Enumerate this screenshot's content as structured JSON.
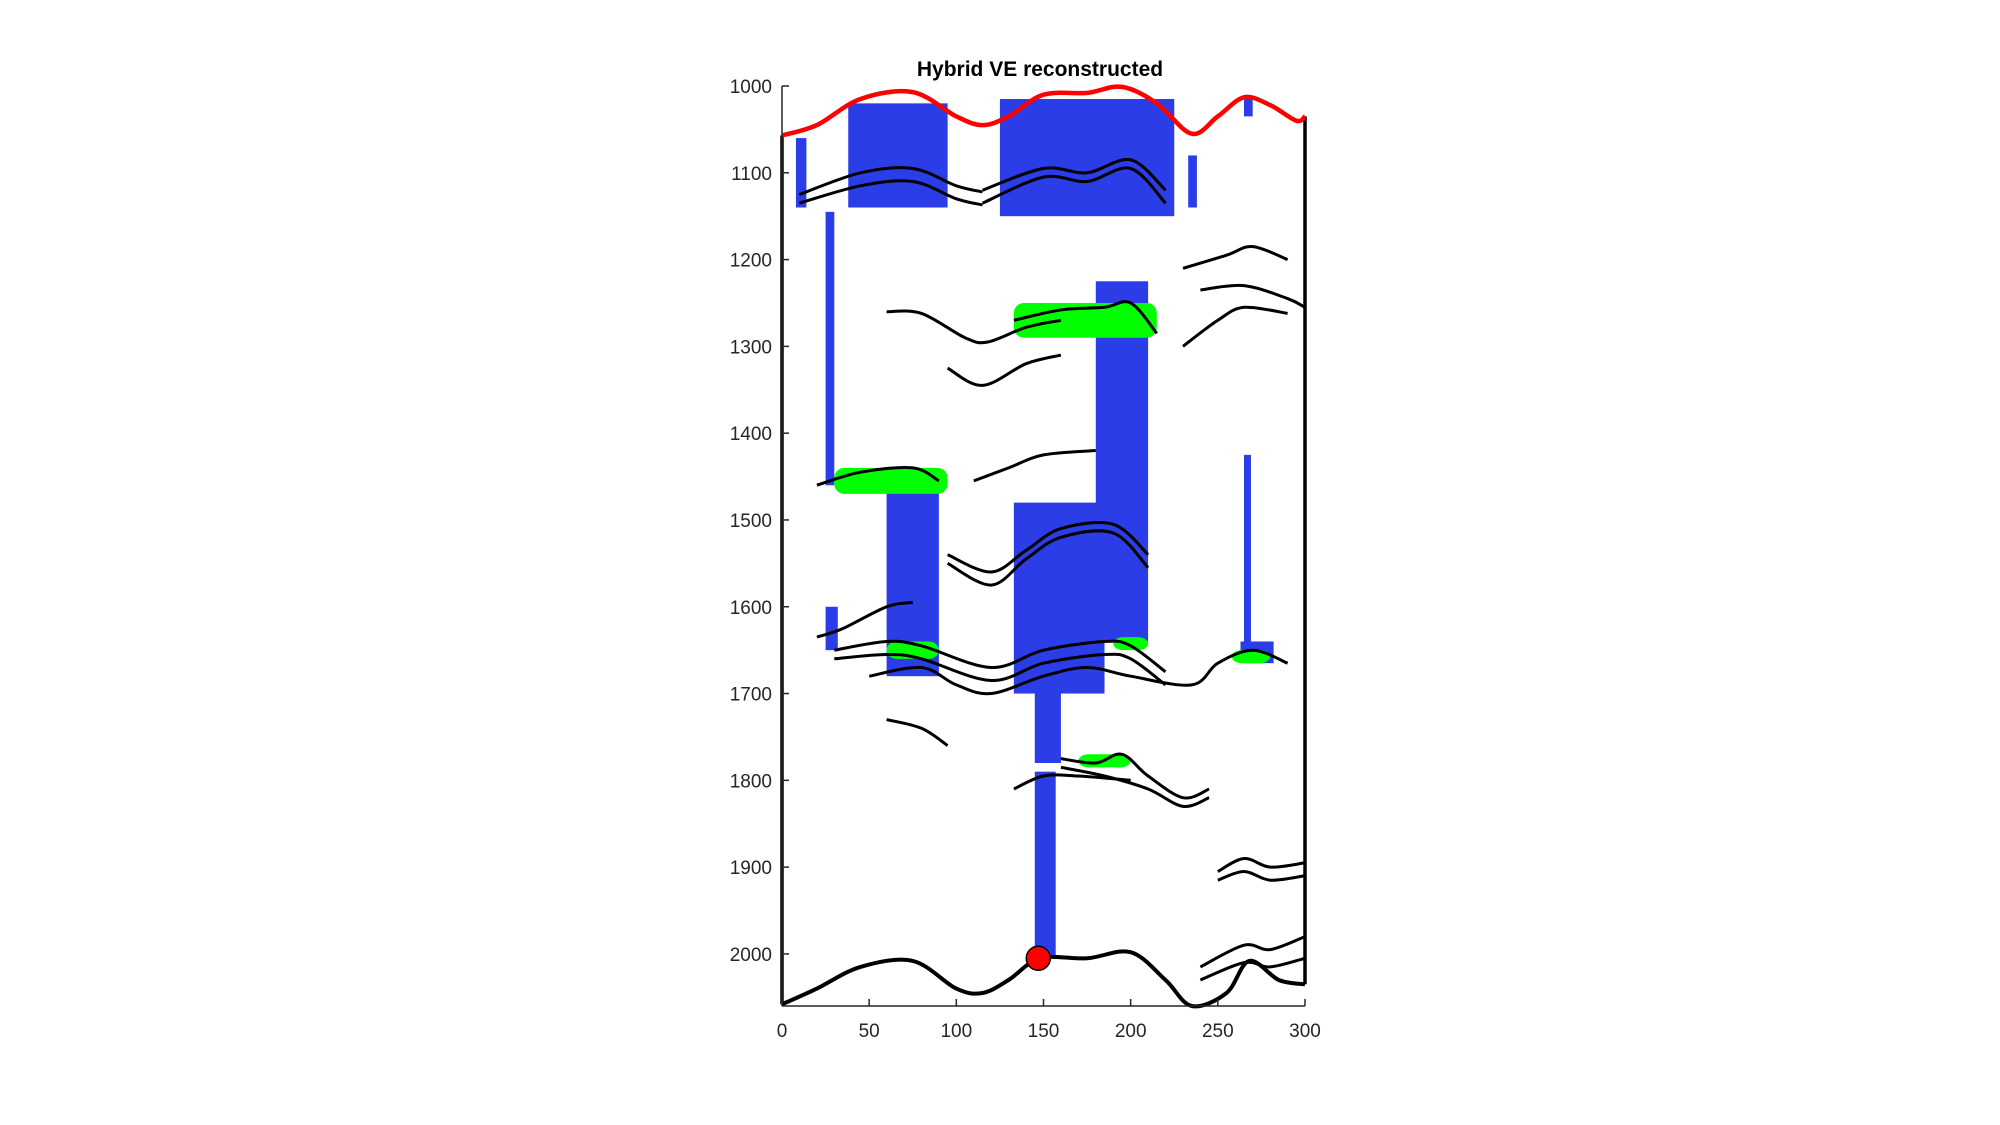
{
  "chart_data": {
    "type": "area",
    "title": "Hybrid VE reconstructed",
    "xlabel": "",
    "ylabel": "",
    "xlim": [
      0,
      300
    ],
    "ylim": [
      1000,
      2060
    ],
    "y_reversed": true,
    "xticks": [
      0,
      50,
      100,
      150,
      200,
      250,
      300
    ],
    "yticks": [
      1000,
      1100,
      1200,
      1300,
      1400,
      1500,
      1600,
      1700,
      1800,
      1900,
      2000
    ],
    "grid": false,
    "legend": "none",
    "colors": {
      "co2": "#2b3de6",
      "plume": "#00ff00",
      "top": "#ff0000",
      "outline": "#000000",
      "well": "#ff0000"
    },
    "top_surface": [
      [
        0,
        1057
      ],
      [
        20,
        1045
      ],
      [
        45,
        1015
      ],
      [
        75,
        1007
      ],
      [
        100,
        1035
      ],
      [
        115,
        1045
      ],
      [
        130,
        1035
      ],
      [
        150,
        1010
      ],
      [
        175,
        1008
      ],
      [
        195,
        1001
      ],
      [
        215,
        1020
      ],
      [
        235,
        1055
      ],
      [
        250,
        1035
      ],
      [
        265,
        1013
      ],
      [
        280,
        1022
      ],
      [
        295,
        1040
      ],
      [
        300,
        1035
      ]
    ],
    "bottom_surface": [
      [
        0,
        2058
      ],
      [
        20,
        2040
      ],
      [
        45,
        2015
      ],
      [
        75,
        2008
      ],
      [
        100,
        2040
      ],
      [
        115,
        2045
      ],
      [
        130,
        2030
      ],
      [
        148,
        2005
      ],
      [
        175,
        2005
      ],
      [
        200,
        1998
      ],
      [
        220,
        2030
      ],
      [
        235,
        2060
      ],
      [
        255,
        2045
      ],
      [
        268,
        2008
      ],
      [
        285,
        2030
      ],
      [
        300,
        2035
      ]
    ],
    "injection_well": {
      "x": 147,
      "depth": 2005
    },
    "co2_regions": [
      {
        "x": [
          [
            8,
            14
          ]
        ],
        "depth": [
          1060,
          1140
        ]
      },
      {
        "x": [
          [
            38,
            95
          ]
        ],
        "depth": [
          1020,
          1140
        ]
      },
      {
        "x": [
          [
            125,
            225
          ]
        ],
        "depth": [
          1015,
          1150
        ]
      },
      {
        "x": [
          [
            25,
            30
          ]
        ],
        "depth": [
          1145,
          1460
        ]
      },
      {
        "x": [
          [
            233,
            238
          ]
        ],
        "depth": [
          1080,
          1140
        ]
      },
      {
        "x": [
          [
            265,
            270
          ]
        ],
        "depth": [
          1013,
          1035
        ]
      },
      {
        "x": [
          [
            180,
            210
          ]
        ],
        "depth": [
          1225,
          1640
        ]
      },
      {
        "x": [
          [
            60,
            90
          ]
        ],
        "depth": [
          1450,
          1680
        ]
      },
      {
        "x": [
          [
            133,
            185
          ]
        ],
        "depth": [
          1480,
          1700
        ]
      },
      {
        "x": [
          [
            265,
            269
          ]
        ],
        "depth": [
          1425,
          1650
        ]
      },
      {
        "x": [
          [
            145,
            160
          ]
        ],
        "depth": [
          1650,
          1780
        ]
      },
      {
        "x": [
          [
            145,
            157
          ]
        ],
        "depth": [
          1790,
          2005
        ]
      },
      {
        "x": [
          [
            25,
            32
          ]
        ],
        "depth": [
          1600,
          1650
        ]
      },
      {
        "x": [
          [
            263,
            282
          ]
        ],
        "depth": [
          1640,
          1665
        ]
      }
    ],
    "plume_zones": [
      {
        "x": [
          133,
          215
        ],
        "depth": [
          1250,
          1290
        ]
      },
      {
        "x": [
          30,
          95
        ],
        "depth": [
          1440,
          1470
        ]
      },
      {
        "x": [
          60,
          90
        ],
        "depth": [
          1640,
          1660
        ]
      },
      {
        "x": [
          190,
          210
        ],
        "depth": [
          1635,
          1650
        ]
      },
      {
        "x": [
          258,
          280
        ],
        "depth": [
          1650,
          1665
        ]
      },
      {
        "x": [
          170,
          200
        ],
        "depth": [
          1770,
          1785
        ]
      }
    ]
  }
}
